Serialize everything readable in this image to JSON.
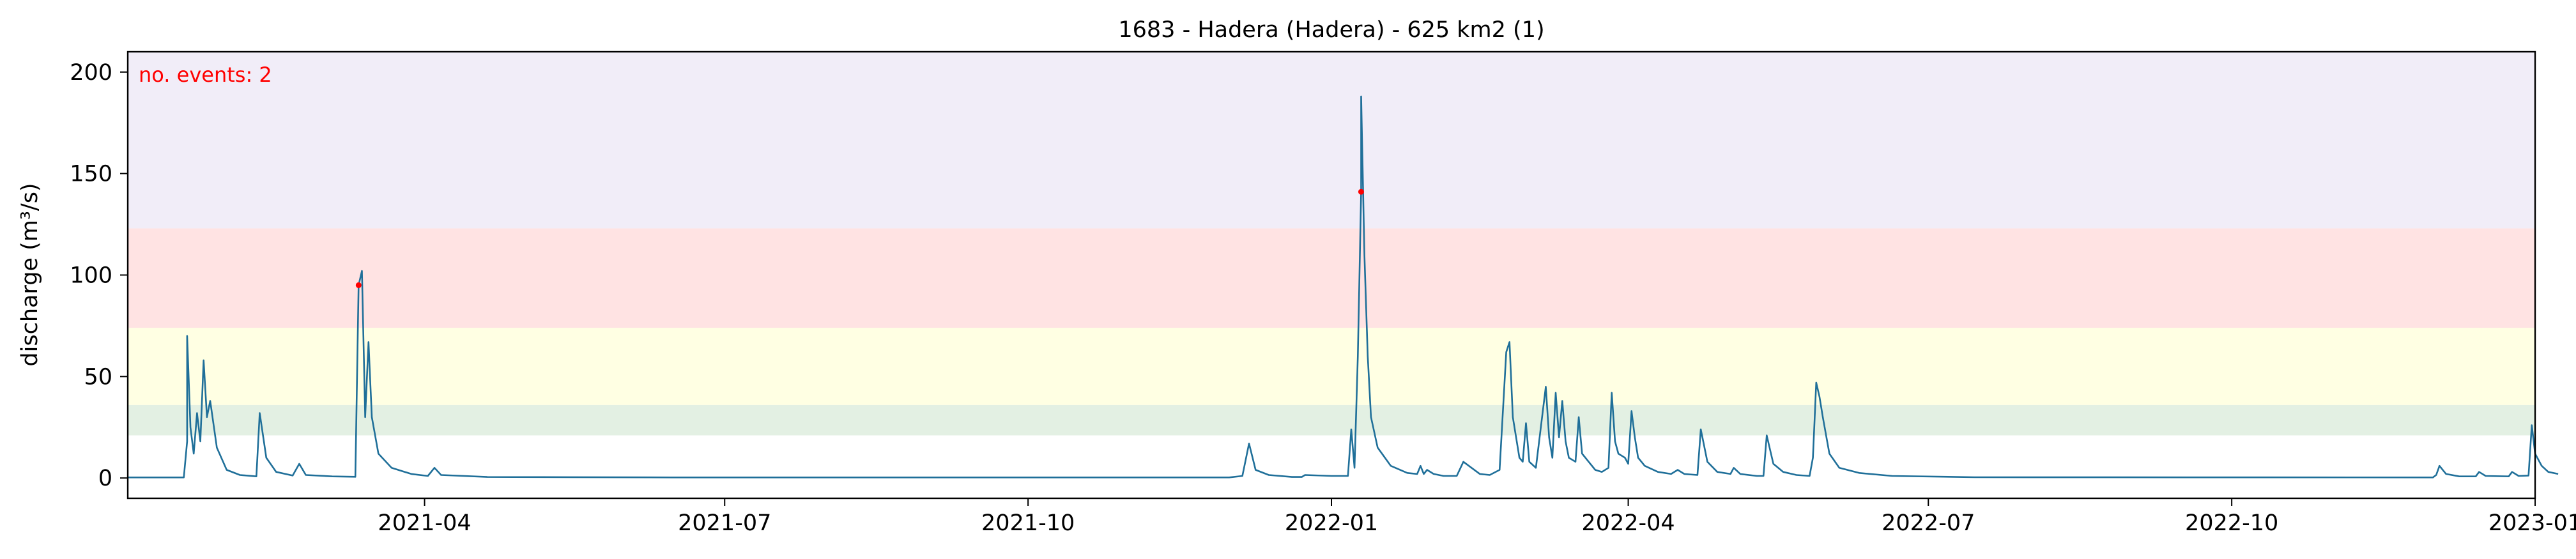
{
  "chart_data": {
    "type": "line",
    "title": "1683 - Hadera (Hadera) - 625 km2 (1)",
    "xlabel": "",
    "ylabel": "discharge (m³/s)",
    "annotation": "no. events: 2",
    "xlim": [
      "2021-01-01",
      "2023-01-01"
    ],
    "ylim": [
      -10,
      210
    ],
    "x_ticks": [
      "2021-04-01",
      "2021-07-01",
      "2021-10-01",
      "2022-01-01",
      "2022-04-01",
      "2022-07-01",
      "2022-10-01",
      "2023-01-01"
    ],
    "x_tick_labels": [
      "2021-04",
      "2021-07",
      "2021-10",
      "2022-01",
      "2022-04",
      "2022-07",
      "2022-10",
      "2023-01"
    ],
    "y_ticks": [
      0,
      50,
      100,
      150,
      200
    ],
    "y_tick_labels": [
      "0",
      "50",
      "100",
      "150",
      "200"
    ],
    "grid": false,
    "threshold_bands": [
      {
        "from": 21,
        "to": 36,
        "color": "#e3f0e3"
      },
      {
        "from": 36,
        "to": 74,
        "color": "#ffffe3"
      },
      {
        "from": 74,
        "to": 123,
        "color": "#ffe3e3"
      },
      {
        "from": 123,
        "to": 210,
        "color": "#f1edf8"
      }
    ],
    "series": [
      {
        "color": "#1f6f99",
        "points": [
          [
            "2021-01-01",
            0.3
          ],
          [
            "2021-01-18",
            0.3
          ],
          [
            "2021-01-19",
            18
          ],
          [
            "2021-01-19",
            70
          ],
          [
            "2021-01-20",
            25
          ],
          [
            "2021-01-21",
            12
          ],
          [
            "2021-01-22",
            32
          ],
          [
            "2021-01-23",
            18
          ],
          [
            "2021-01-24",
            58
          ],
          [
            "2021-01-25",
            30
          ],
          [
            "2021-01-26",
            38
          ],
          [
            "2021-01-28",
            15
          ],
          [
            "2021-01-31",
            4
          ],
          [
            "2021-02-04",
            1.5
          ],
          [
            "2021-02-09",
            0.8
          ],
          [
            "2021-02-10",
            32
          ],
          [
            "2021-02-12",
            10
          ],
          [
            "2021-02-15",
            3
          ],
          [
            "2021-02-20",
            1.2
          ],
          [
            "2021-02-22",
            7
          ],
          [
            "2021-02-24",
            1.5
          ],
          [
            "2021-03-04",
            0.8
          ],
          [
            "2021-03-11",
            0.6
          ],
          [
            "2021-03-12",
            95
          ],
          [
            "2021-03-13",
            102
          ],
          [
            "2021-03-14",
            30
          ],
          [
            "2021-03-15",
            67
          ],
          [
            "2021-03-16",
            30
          ],
          [
            "2021-03-18",
            12
          ],
          [
            "2021-03-22",
            5
          ],
          [
            "2021-03-28",
            2
          ],
          [
            "2021-04-02",
            1
          ],
          [
            "2021-04-04",
            5
          ],
          [
            "2021-04-06",
            1.5
          ],
          [
            "2021-04-20",
            0.5
          ],
          [
            "2021-06-15",
            0.3
          ],
          [
            "2021-12-01",
            0.3
          ],
          [
            "2021-12-05",
            1
          ],
          [
            "2021-12-07",
            17
          ],
          [
            "2021-12-09",
            4
          ],
          [
            "2021-12-13",
            1.5
          ],
          [
            "2021-12-18",
            0.8
          ],
          [
            "2021-12-20",
            0.5
          ],
          [
            "2021-12-23",
            0.5
          ],
          [
            "2021-12-24",
            1.5
          ],
          [
            "2022-01-01",
            1
          ],
          [
            "2022-01-06",
            1
          ],
          [
            "2022-01-07",
            24
          ],
          [
            "2022-01-08",
            5
          ],
          [
            "2022-01-09",
            60
          ],
          [
            "2022-01-10",
            141
          ],
          [
            "2022-01-10",
            188
          ],
          [
            "2022-01-11",
            110
          ],
          [
            "2022-01-12",
            60
          ],
          [
            "2022-01-13",
            30
          ],
          [
            "2022-01-15",
            15
          ],
          [
            "2022-01-19",
            6
          ],
          [
            "2022-01-24",
            2.5
          ],
          [
            "2022-01-27",
            2
          ],
          [
            "2022-01-28",
            6
          ],
          [
            "2022-01-29",
            2
          ],
          [
            "2022-01-30",
            4
          ],
          [
            "2022-02-01",
            2
          ],
          [
            "2022-02-04",
            1
          ],
          [
            "2022-02-08",
            1
          ],
          [
            "2022-02-10",
            8
          ],
          [
            "2022-02-15",
            2
          ],
          [
            "2022-02-18",
            1.5
          ],
          [
            "2022-02-21",
            4
          ],
          [
            "2022-02-23",
            62
          ],
          [
            "2022-02-24",
            67
          ],
          [
            "2022-02-25",
            30
          ],
          [
            "2022-02-27",
            10
          ],
          [
            "2022-02-28",
            8
          ],
          [
            "2022-03-01",
            27
          ],
          [
            "2022-03-02",
            8
          ],
          [
            "2022-03-04",
            5
          ],
          [
            "2022-03-07",
            45
          ],
          [
            "2022-03-08",
            20
          ],
          [
            "2022-03-09",
            10
          ],
          [
            "2022-03-10",
            42
          ],
          [
            "2022-03-11",
            20
          ],
          [
            "2022-03-12",
            38
          ],
          [
            "2022-03-13",
            18
          ],
          [
            "2022-03-14",
            10
          ],
          [
            "2022-03-16",
            8
          ],
          [
            "2022-03-17",
            30
          ],
          [
            "2022-03-18",
            12
          ],
          [
            "2022-03-20",
            8
          ],
          [
            "2022-03-22",
            4
          ],
          [
            "2022-03-24",
            3
          ],
          [
            "2022-03-26",
            5
          ],
          [
            "2022-03-27",
            42
          ],
          [
            "2022-03-28",
            18
          ],
          [
            "2022-03-29",
            12
          ],
          [
            "2022-03-31",
            10
          ],
          [
            "2022-04-01",
            7
          ],
          [
            "2022-04-02",
            33
          ],
          [
            "2022-04-03",
            20
          ],
          [
            "2022-04-04",
            10
          ],
          [
            "2022-04-06",
            6
          ],
          [
            "2022-04-10",
            3
          ],
          [
            "2022-04-14",
            2
          ],
          [
            "2022-04-16",
            4
          ],
          [
            "2022-04-18",
            2
          ],
          [
            "2022-04-22",
            1.5
          ],
          [
            "2022-04-23",
            24
          ],
          [
            "2022-04-25",
            8
          ],
          [
            "2022-04-28",
            3
          ],
          [
            "2022-05-02",
            2
          ],
          [
            "2022-05-03",
            5
          ],
          [
            "2022-05-05",
            2
          ],
          [
            "2022-05-10",
            1
          ],
          [
            "2022-05-12",
            1
          ],
          [
            "2022-05-13",
            21
          ],
          [
            "2022-05-15",
            7
          ],
          [
            "2022-05-18",
            3
          ],
          [
            "2022-05-22",
            1.5
          ],
          [
            "2022-05-26",
            1
          ],
          [
            "2022-05-27",
            10
          ],
          [
            "2022-05-28",
            47
          ],
          [
            "2022-05-29",
            40
          ],
          [
            "2022-05-30",
            30
          ],
          [
            "2022-06-01",
            12
          ],
          [
            "2022-06-04",
            5
          ],
          [
            "2022-06-10",
            2.5
          ],
          [
            "2022-06-20",
            1
          ],
          [
            "2022-07-15",
            0.4
          ],
          [
            "2022-12-01",
            0.3
          ],
          [
            "2022-12-02",
            1.5
          ],
          [
            "2022-12-03",
            6
          ],
          [
            "2022-12-05",
            2
          ],
          [
            "2022-12-09",
            0.8
          ],
          [
            "2022-12-14",
            0.8
          ],
          [
            "2022-12-15",
            3
          ],
          [
            "2022-12-17",
            1
          ],
          [
            "2022-12-24",
            0.8
          ],
          [
            "2022-12-25",
            3
          ],
          [
            "2022-12-27",
            1
          ],
          [
            "2022-12-30",
            1.2
          ],
          [
            "2022-12-31",
            26
          ],
          [
            "2023-01-01",
            12
          ],
          [
            "2023-01-03",
            6
          ],
          [
            "2023-01-05",
            3
          ],
          [
            "2023-01-08",
            2
          ]
        ]
      }
    ],
    "events": [
      {
        "x": "2021-03-12",
        "y": 95,
        "color": "#ff0000"
      },
      {
        "x": "2022-01-10",
        "y": 141,
        "color": "#ff0000"
      }
    ]
  }
}
